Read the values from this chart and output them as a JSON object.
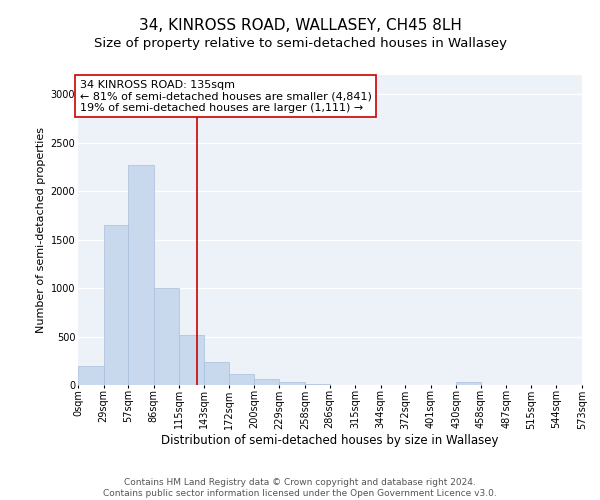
{
  "title": "34, KINROSS ROAD, WALLASEY, CH45 8LH",
  "subtitle": "Size of property relative to semi-detached houses in Wallasey",
  "xlabel": "Distribution of semi-detached houses by size in Wallasey",
  "ylabel": "Number of semi-detached properties",
  "bar_color": "#c8d8ed",
  "bar_edge_color": "#a8bfdb",
  "vline_value": 135,
  "vline_color": "#cc0000",
  "annotation_text": "34 KINROSS ROAD: 135sqm\n← 81% of semi-detached houses are smaller (4,841)\n19% of semi-detached houses are larger (1,111) →",
  "annotation_box_color": "#ffffff",
  "annotation_box_edge": "#cc0000",
  "bin_edges": [
    0,
    29,
    57,
    86,
    115,
    143,
    172,
    200,
    229,
    258,
    286,
    315,
    344,
    372,
    401,
    430,
    458,
    487,
    515,
    544,
    573
  ],
  "bar_heights": [
    200,
    1650,
    2270,
    1000,
    520,
    240,
    110,
    60,
    35,
    10,
    5,
    2,
    0,
    0,
    0,
    30,
    0,
    0,
    0,
    0
  ],
  "ylim": [
    0,
    3200
  ],
  "yticks": [
    0,
    500,
    1000,
    1500,
    2000,
    2500,
    3000
  ],
  "background_color": "#edf1f8",
  "grid_color": "#ffffff",
  "footer_text": "Contains HM Land Registry data © Crown copyright and database right 2024.\nContains public sector information licensed under the Open Government Licence v3.0.",
  "title_fontsize": 11,
  "subtitle_fontsize": 9.5,
  "axis_label_fontsize": 8,
  "tick_fontsize": 7,
  "annotation_fontsize": 8,
  "footer_fontsize": 6.5
}
